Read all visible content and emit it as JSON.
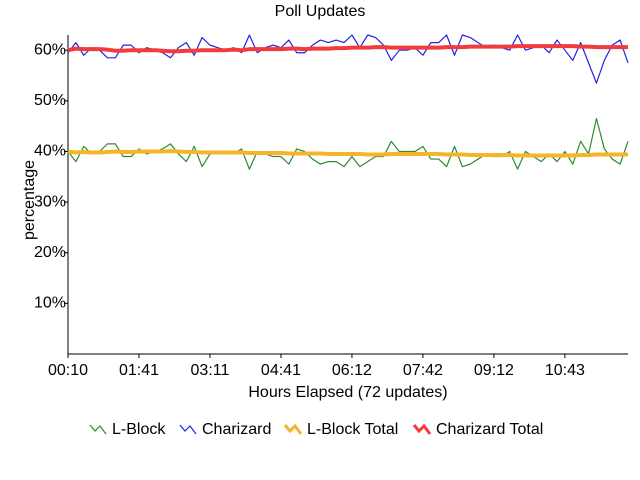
{
  "chart_data": {
    "type": "line",
    "title": "Poll Updates",
    "x_label": "Hours Elapsed (72 updates)",
    "y_label": "percentage",
    "categories": [
      "00:10",
      null,
      null,
      null,
      null,
      null,
      null,
      null,
      null,
      "01:41",
      null,
      null,
      null,
      null,
      null,
      null,
      null,
      null,
      "03:11",
      null,
      null,
      null,
      null,
      null,
      null,
      null,
      null,
      "04:41",
      null,
      null,
      null,
      null,
      null,
      null,
      null,
      null,
      "06:12",
      null,
      null,
      null,
      null,
      null,
      null,
      null,
      null,
      "07:42",
      null,
      null,
      null,
      null,
      null,
      null,
      null,
      null,
      "09:12",
      null,
      null,
      null,
      null,
      null,
      null,
      null,
      null,
      "10:43",
      null,
      null,
      null,
      null,
      null,
      null,
      null,
      null
    ],
    "ylim": [
      0,
      63
    ],
    "yticks": [
      {
        "value": 10,
        "label": "10%"
      },
      {
        "value": 20,
        "label": "20%"
      },
      {
        "value": 30,
        "label": "30%"
      },
      {
        "value": 40,
        "label": "40%"
      },
      {
        "value": 50,
        "label": "50%"
      },
      {
        "value": 60,
        "label": "60%"
      }
    ],
    "series": [
      {
        "name": "L-Block",
        "color": "#2e8b2e",
        "width": 1.2,
        "values": [
          40,
          38,
          41,
          39.5,
          40,
          41.5,
          41.5,
          39,
          39,
          40.5,
          39.5,
          40,
          40.5,
          41.5,
          39.5,
          38,
          41,
          37,
          39.5,
          40,
          40,
          39.5,
          40.5,
          36.5,
          40,
          39.5,
          39,
          39,
          37.5,
          40.5,
          40,
          38.5,
          37.5,
          38,
          38,
          37,
          39,
          37,
          38,
          39,
          39,
          42,
          40,
          40,
          40,
          41,
          38.5,
          38.5,
          37,
          41,
          37,
          37.5,
          38.5,
          39.5,
          39,
          39,
          40,
          36.5,
          40,
          39,
          38,
          39.5,
          38,
          40,
          37.5,
          42,
          39.5,
          46.5,
          40.5,
          38.5,
          37.5,
          42
        ]
      },
      {
        "name": "Charizard",
        "color": "#2323e0",
        "width": 1.2,
        "values": [
          59.5,
          61.5,
          59,
          60.5,
          60,
          58.5,
          58.5,
          61,
          61,
          59.5,
          60.5,
          60,
          59.5,
          58.5,
          60.5,
          61.5,
          59,
          62.5,
          61,
          60.5,
          60,
          60.5,
          59.5,
          63,
          59.5,
          60.5,
          61,
          60.5,
          62,
          59.5,
          59.5,
          61,
          62,
          61.5,
          62,
          61.5,
          63,
          60.5,
          63,
          62.5,
          61,
          58,
          60,
          60,
          60.5,
          59,
          61.5,
          61.5,
          63,
          59,
          63,
          62.5,
          61.5,
          60.5,
          61,
          60.5,
          60,
          63,
          60,
          60.5,
          61,
          59.5,
          62,
          60,
          58,
          61.5,
          57.5,
          53.5,
          58,
          61,
          62,
          57.5
        ]
      },
      {
        "name": "L-Block Total",
        "color": "#f5b52a",
        "width": 4,
        "values": [
          40.0,
          39.8,
          39.9,
          39.8,
          39.8,
          39.9,
          40.0,
          39.9,
          39.9,
          40.0,
          40.0,
          40.0,
          40.0,
          40.1,
          40.0,
          39.9,
          39.9,
          39.8,
          39.8,
          39.8,
          39.8,
          39.8,
          39.8,
          39.7,
          39.7,
          39.7,
          39.7,
          39.7,
          39.6,
          39.6,
          39.6,
          39.6,
          39.6,
          39.5,
          39.5,
          39.5,
          39.5,
          39.5,
          39.4,
          39.4,
          39.4,
          39.5,
          39.5,
          39.5,
          39.5,
          39.5,
          39.5,
          39.5,
          39.4,
          39.4,
          39.4,
          39.3,
          39.3,
          39.3,
          39.3,
          39.3,
          39.3,
          39.2,
          39.2,
          39.2,
          39.2,
          39.2,
          39.2,
          39.2,
          39.2,
          39.3,
          39.3,
          39.4,
          39.4,
          39.4,
          39.4,
          39.4
        ]
      },
      {
        "name": "Charizard Total",
        "color": "#f03c3c",
        "width": 4,
        "values": [
          60.0,
          60.3,
          60.2,
          60.2,
          60.2,
          60.1,
          59.9,
          59.9,
          60.0,
          60.0,
          60.0,
          60.0,
          59.9,
          59.8,
          59.8,
          59.9,
          59.9,
          60.0,
          60.0,
          60.0,
          60.0,
          60.1,
          60.0,
          60.2,
          60.2,
          60.2,
          60.2,
          60.2,
          60.3,
          60.3,
          60.2,
          60.3,
          60.3,
          60.3,
          60.4,
          60.4,
          60.5,
          60.5,
          60.5,
          60.6,
          60.6,
          60.5,
          60.5,
          60.5,
          60.5,
          60.5,
          60.5,
          60.5,
          60.6,
          60.6,
          60.6,
          60.7,
          60.7,
          60.7,
          60.7,
          60.7,
          60.7,
          60.8,
          60.8,
          60.8,
          60.8,
          60.8,
          60.8,
          60.8,
          60.8,
          60.7,
          60.7,
          60.6,
          60.6,
          60.6,
          60.6,
          60.6
        ]
      }
    ]
  }
}
